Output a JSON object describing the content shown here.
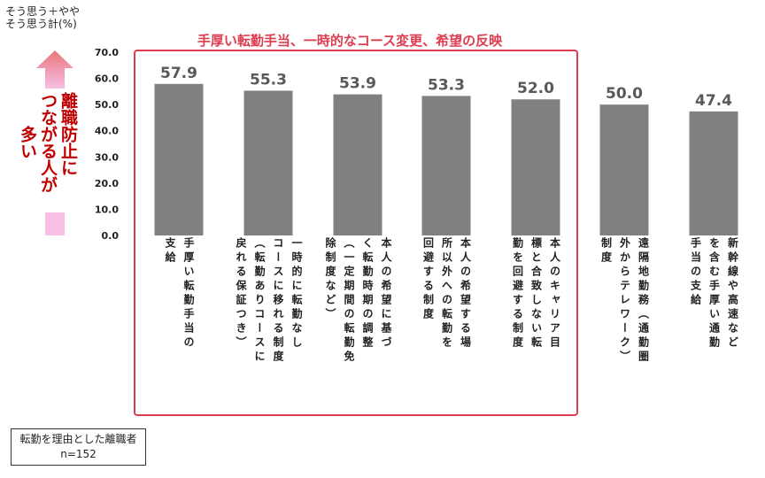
{
  "y_label": "そう思う＋やや\nそう思う計(%)",
  "callout": {
    "col1": "離職防止に",
    "col2": "つながる人が",
    "col3": "多い"
  },
  "highlight_title": "手厚い転勤手当、一時的なコース変更、希望の反映",
  "footnote": {
    "line1": "転勤を理由とした離職者",
    "line2": "n=152"
  },
  "colors": {
    "bar": "#808080",
    "highlight": "#e03c4f",
    "arrow_top": "#e8767d",
    "arrow_bottom": "#f6bfe3"
  },
  "chart_data": {
    "type": "bar",
    "ylim": [
      0,
      70
    ],
    "yticks": [
      "0.0",
      "10.0",
      "20.0",
      "30.0",
      "40.0",
      "50.0",
      "60.0",
      "70.0"
    ],
    "values": [
      57.9,
      55.3,
      53.9,
      53.3,
      52.0,
      50.0,
      47.4
    ],
    "value_labels": [
      "57.9",
      "55.3",
      "53.9",
      "53.3",
      "52.0",
      "50.0",
      "47.4"
    ],
    "categories": [
      [
        "手厚い転勤手当の",
        "支給"
      ],
      [
        "一時的に転勤なし",
        "コースに移れる制度",
        "（転勤ありコースに",
        "戻れる保証つき）"
      ],
      [
        "本人の希望に基づ",
        "く転勤時期の調整",
        "（一定期間の転勤免",
        "除制度など）"
      ],
      [
        "本人の希望する場",
        "所以外への転勤を",
        "回避する制度"
      ],
      [
        "本人のキャリア目",
        "標と合致しない転",
        "勤を回避する制度"
      ],
      [
        "遠隔地勤務（通勤圏",
        "外からテレワーク）",
        "制度"
      ],
      [
        "新幹線や高速など",
        "を含む手厚い通勤",
        "手当の支給"
      ]
    ]
  }
}
